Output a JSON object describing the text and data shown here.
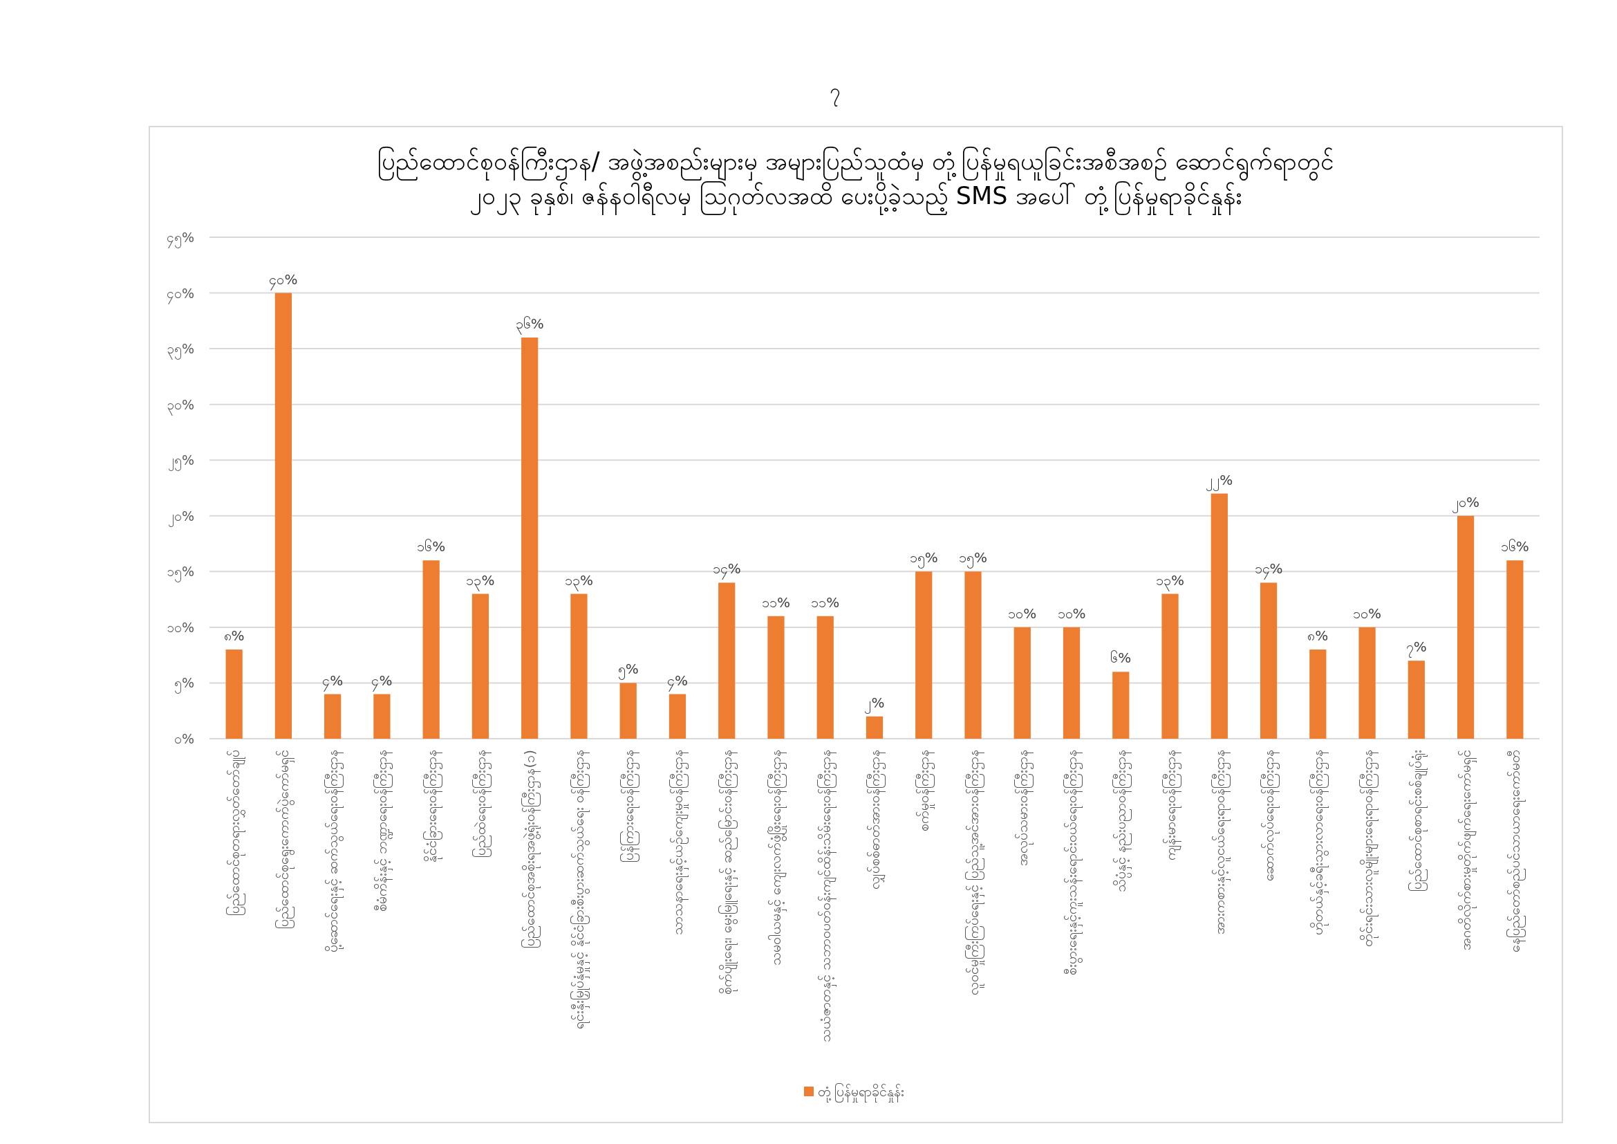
{
  "chart_data": {
    "type": "bar",
    "title": "ပြည်ထောင်စုဝန်ကြီးဌာန/ အဖွဲ့အစည်းများမှ အများပြည်သူထံမှ တုံ့ပြန်မှုရယူခြင်းအစီအစဉ် ဆောင်ရွက်ရာတွင်",
    "subtitle": "၂၀၂၃ ခုနှစ်၊ ဇန်နဝါရီလမှ ဩဂုတ်လအထိ ပေးပို့ခဲ့သည့် SMS အပေါ် တုံ့ပြန်မှုရာခိုင်နှုန်း",
    "annotations": [
      "၇"
    ],
    "categories": [
      "ပြည်ထောင်စုတရားလွှတ်တော်ချုပ်",
      "ပြည်ထောင်စုရွေးကောက်ပွဲကော်မရှင်",
      "ပို့ဆောင်ရေးနှင့် ဆက်သွယ်ရေးဝန်ကြီးဌာန",
      "စီမံကိန်းနှင့် ဘဏ္ဍာရေးဝန်ကြီးဌာန",
      "နိုင်ငံခြားရေးဝန်ကြီးဌာန",
      "ပြည်ထဲရေးဝန်ကြီးဌာန",
      "ပြည်ထောင်စုအစိုးရအဖွဲ့ရုံးဝန်ကြီးဌာန(၁)",
      "ရင်းနှီးမြှုပ်နှံမှုနှင့် နိုင်ငံခြားစီးပွားဆက်သွယ်ရေး ဝန်ကြီးဌာန",
      "ပြန်ကြားရေးဝန်ကြီးဌာန",
      "သာသနာရေးနှင့်ယဉ်ကျေးမှုဝန်ကြီးဌာန",
      "စိုက်ပျိုးရေး၊ မွေးမြူရေးနှင့် ဆည်မြောင်းဝန်ကြီးဌာန",
      "သမဝါယမနှင့် ကျေးလက်ဖွံ့ဖြိုးရေးဝန်ကြီးဌာန",
      "သယံဇာတနှင့် သဘာဝပတ်ဝန်းကျင်ထိန်းသိမ်းရေးဝန်ကြီးဌာန",
      "လျှပ်စစ်ဓာတ်အားဝန်ကြီးဌာန",
      "စက်မှုဝန်ကြီးဌာန",
      "လူဝင်မှုကြီးကြပ်ရေးနှင့် ပြည်သူ့အင်အားဝန်ကြီးဌာန",
      "အလုပ်သမားဝန်ကြီးဌာန",
      "စီးပွားရေးနှင့်ကူးသန်းရောင်းဝယ်ရေးဝန်ကြီးဌာန",
      "သိပ္ပံနှင့် နည်းပညာဝန်ကြီးဌာန",
      "ကျန်းမာရေးဝန်ကြီးဌာန",
      "အားကစားနှင့်လူငယ်ရေးရာဝန်ကြီးဌာန",
      "ဆောက်လုပ်ရေးဝန်ကြီးဌာန",
      "ဟိုတယ်နှင့်ခရီးသွားလာရေးဝန်ကြီးဌာန",
      "တိုင်းရင်းသားလူမျိုးများရေးရာဝန်ကြီးဌာန",
      "ပြည်ထောင်စုစာရင်းစစ်ချုပ်ရုံး",
      "အဂတိလိုက်စားမှုတိုက်ဖျက်ရေးကော်မရှင်",
      "နေပြည်တော်စည်ပင်သာယာရေးကော်မတီ"
    ],
    "series": [
      {
        "name": "တုံ့ပြန်မှုရာခိုင်နှုန်း",
        "color": "#ed7d31",
        "values": [
          8,
          40,
          4,
          4,
          16,
          13,
          36,
          13,
          5,
          4,
          14,
          11,
          11,
          2,
          15,
          15,
          10,
          10,
          6,
          13,
          22,
          14,
          8,
          10,
          7,
          20,
          16
        ],
        "value_labels": [
          "၈%",
          "၄၀%",
          "၄%",
          "၄%",
          "၁၆%",
          "၁၃%",
          "၃၆%",
          "၁၃%",
          "၅%",
          "၄%",
          "၁၄%",
          "၁၁%",
          "၁၁%",
          "၂%",
          "၁၅%",
          "၁၅%",
          "၁၀%",
          "၁၀%",
          "၆%",
          "၁၃%",
          "၂၂%",
          "၁၄%",
          "၈%",
          "၁၀%",
          "၇%",
          "၂၀%",
          "၁၆%"
        ]
      }
    ],
    "ylim": [
      0,
      45
    ],
    "yticks": [
      {
        "value": 0,
        "label": "၀%"
      },
      {
        "value": 5,
        "label": "၅%"
      },
      {
        "value": 10,
        "label": "၁၀%"
      },
      {
        "value": 15,
        "label": "၁၅%"
      },
      {
        "value": 20,
        "label": "၂၀%"
      },
      {
        "value": 25,
        "label": "၂၅%"
      },
      {
        "value": 30,
        "label": "၃၀%"
      },
      {
        "value": 35,
        "label": "၃၅%"
      },
      {
        "value": 40,
        "label": "၄၀%"
      },
      {
        "value": 45,
        "label": "၄၅%"
      }
    ],
    "grid": "y",
    "legend": "bottom"
  }
}
